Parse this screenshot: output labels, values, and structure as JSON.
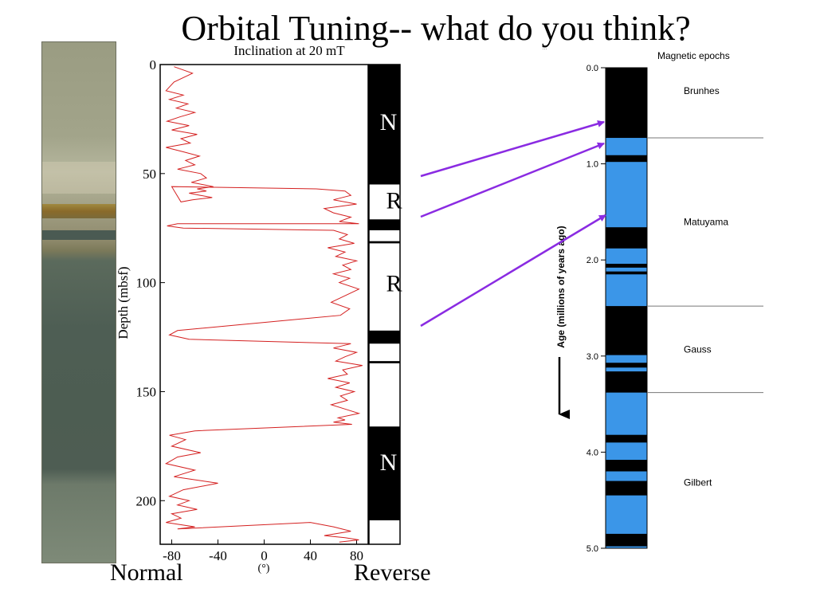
{
  "slide": {
    "title": "Orbital Tuning-- what do you think?",
    "label_normal": "Normal",
    "label_reverse": "Reverse"
  },
  "colors": {
    "inclination_line": "#d42020",
    "normal_polarity": "#000000",
    "reverse_polarity_left": "#ffffff",
    "reverse_polarity_right": "#3b96e8",
    "arrow": "#8a2be2"
  },
  "chart_data": [
    {
      "type": "line",
      "title": "Inclination at 20 mT",
      "xlabel": "(°)",
      "ylabel": "Depth (mbsf)",
      "xlim": [
        -90,
        90
      ],
      "ylim": [
        0,
        220
      ],
      "y_inverted": true,
      "x_ticks": [
        -80,
        -40,
        0,
        40,
        80
      ],
      "y_ticks": [
        0,
        50,
        100,
        150,
        200
      ],
      "series": [
        {
          "x": [
            -78,
            -62,
            -78,
            -85,
            -70,
            -82,
            -66,
            -76,
            -60,
            -73,
            -84,
            -65,
            -80,
            -58,
            -72,
            -64,
            -85,
            -70,
            -56,
            -68,
            -60,
            -75,
            -55,
            -50,
            -63,
            -44,
            -58,
            -50,
            -65,
            -55,
            -45,
            -62,
            -72,
            -80,
            45,
            70,
            75,
            60,
            80,
            52,
            60,
            75,
            65,
            82,
            -75,
            -84,
            -70,
            60,
            72,
            65,
            78,
            55,
            70,
            62,
            80,
            68,
            75,
            60,
            74,
            65,
            82,
            70,
            58,
            74,
            66,
            -75,
            -82,
            -65,
            75,
            60,
            80,
            70,
            62,
            85,
            68,
            72,
            55,
            74,
            62,
            78,
            66,
            72,
            58,
            70,
            82,
            64,
            70,
            60,
            76,
            -60,
            -82,
            -68,
            -80,
            -55,
            -75,
            -85,
            -60,
            -78,
            -40,
            -70,
            -82,
            -65,
            -75,
            -58,
            -80,
            -72,
            -85,
            -60,
            -75,
            40,
            60,
            75,
            52,
            70,
            82,
            65
          ],
          "y": [
            1,
            4,
            8,
            12,
            14,
            16,
            18,
            20,
            22,
            24,
            26,
            28,
            30,
            32,
            34,
            36,
            38,
            40,
            42,
            44,
            46,
            48,
            50,
            52,
            54,
            56,
            57,
            58,
            59,
            60,
            61,
            62,
            63,
            56,
            57,
            58,
            60,
            62,
            64,
            66,
            68,
            70,
            72,
            73,
            73,
            74,
            75,
            76,
            78,
            80,
            82,
            84,
            86,
            88,
            90,
            92,
            94,
            96,
            98,
            100,
            103,
            106,
            109,
            112,
            115,
            122,
            124,
            126,
            128,
            130,
            132,
            134,
            136,
            138,
            140,
            142,
            144,
            146,
            148,
            150,
            152,
            154,
            156,
            158,
            160,
            162,
            163,
            164,
            165,
            168,
            170,
            172,
            175,
            178,
            180,
            183,
            186,
            189,
            192,
            195,
            198,
            200,
            202,
            204,
            206,
            208,
            210,
            212,
            213,
            210,
            212,
            214,
            216,
            217,
            218,
            219
          ]
        }
      ],
      "polarity_column": {
        "ylim": [
          0,
          220
        ],
        "normal": [
          [
            0,
            55
          ],
          [
            71,
            76
          ],
          [
            81,
            82
          ],
          [
            122,
            128
          ],
          [
            136,
            137
          ],
          [
            166,
            209
          ]
        ],
        "labels": [
          {
            "text": "N",
            "depth": 26
          },
          {
            "text": "R",
            "depth": 62
          },
          {
            "text": "R",
            "depth": 100
          },
          {
            "text": "N",
            "depth": 182
          }
        ]
      }
    },
    {
      "type": "table",
      "title": "Magnetic epochs",
      "ylabel": "Age (millions of years ago)",
      "ylim": [
        0,
        5.0
      ],
      "y_ticks": [
        "0.0",
        "1.0",
        "2.0",
        "3.0",
        "4.0",
        "5.0"
      ],
      "normal": [
        [
          0,
          0.73
        ],
        [
          0.91,
          0.98
        ],
        [
          1.66,
          1.88
        ],
        [
          2.04,
          2.08
        ],
        [
          2.12,
          2.15
        ],
        [
          2.48,
          2.99
        ],
        [
          3.07,
          3.12
        ],
        [
          3.16,
          3.38
        ],
        [
          3.82,
          3.9
        ],
        [
          4.08,
          4.2
        ],
        [
          4.3,
          4.45
        ],
        [
          4.85,
          4.98
        ]
      ],
      "epochs": [
        {
          "name": "Brunhes",
          "top": 0,
          "bottom": 0.73
        },
        {
          "name": "Matuyama",
          "top": 0.73,
          "bottom": 2.48
        },
        {
          "name": "Gauss",
          "top": 2.48,
          "bottom": 3.38
        },
        {
          "name": "Gilbert",
          "top": 3.38,
          "bottom": 5.0
        }
      ]
    }
  ]
}
